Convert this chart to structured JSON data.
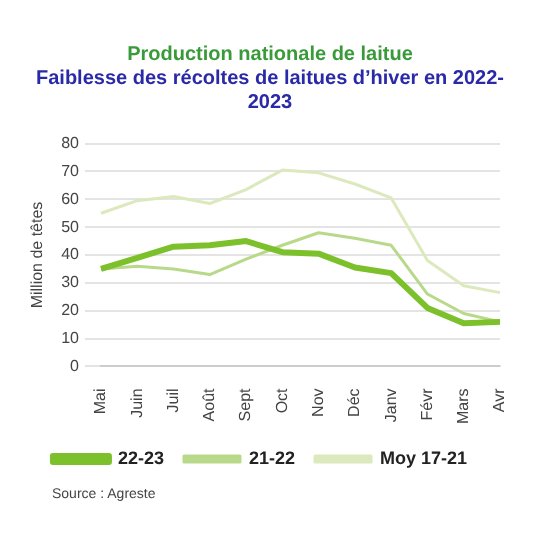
{
  "chart_data": {
    "type": "line",
    "title": "Production nationale de laitue",
    "subtitle": "Faiblesse des récoltes de laitues d’hiver en 2022-2023",
    "ylabel": "Million de têtes",
    "categories": [
      "Mai",
      "Juin",
      "Juil",
      "Août",
      "Sept",
      "Oct",
      "Nov",
      "Déc",
      "Janv",
      "Févr",
      "Mars",
      "Avr"
    ],
    "series": [
      {
        "name": "22-23",
        "color": "#7cc12b",
        "values": [
          35,
          39,
          43,
          43.5,
          45,
          41,
          40.5,
          35.5,
          33.5,
          21,
          15.5,
          16
        ]
      },
      {
        "name": "21-22",
        "color": "#b9d98a",
        "values": [
          35,
          36,
          35,
          33,
          38.5,
          43.5,
          48,
          46,
          43.5,
          26,
          19,
          16
        ]
      },
      {
        "name": "Moy 17-21",
        "color": "#dbe9bd",
        "values": [
          55,
          59.5,
          61,
          58.5,
          63.5,
          70.5,
          69.5,
          65.5,
          60.5,
          38,
          29,
          26.5
        ]
      }
    ],
    "ylim": [
      0,
      80
    ],
    "yticks": [
      0,
      10,
      20,
      30,
      40,
      50,
      60,
      70,
      80
    ],
    "grid": "y",
    "legend": "bottom",
    "marker": "none",
    "line_style": "solid",
    "annotations": [
      "Source : Agreste"
    ]
  }
}
